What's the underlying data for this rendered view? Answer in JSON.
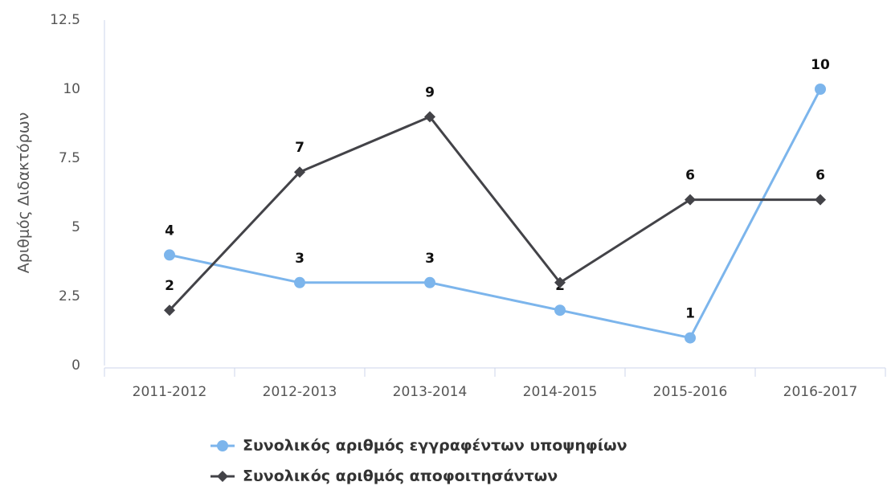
{
  "chart_data": {
    "type": "line",
    "y_label": "Αριθμός Διδακτόρων",
    "categories": [
      "2011-2012",
      "2012-2013",
      "2013-2014",
      "2014-2015",
      "2015-2016",
      "2016-2017"
    ],
    "series": [
      {
        "name": "Συνολικός αριθμός εγγραφέντων υποψηφίων",
        "color": "#7cb5ec",
        "marker": "circle",
        "values": [
          4,
          3,
          3,
          2,
          1,
          10
        ]
      },
      {
        "name": "Συνολικός αριθμός αποφοιτησάντων",
        "color": "#434348",
        "marker": "diamond",
        "values": [
          2,
          7,
          9,
          3,
          6,
          6
        ],
        "value_labels": [
          "2",
          "7",
          "9",
          null,
          "6",
          "6"
        ]
      }
    ],
    "ylim": [
      0,
      12.5
    ],
    "yticks": [
      0,
      2.5,
      5,
      7.5,
      10,
      12.5
    ],
    "grid": false,
    "legend": "bottom"
  }
}
